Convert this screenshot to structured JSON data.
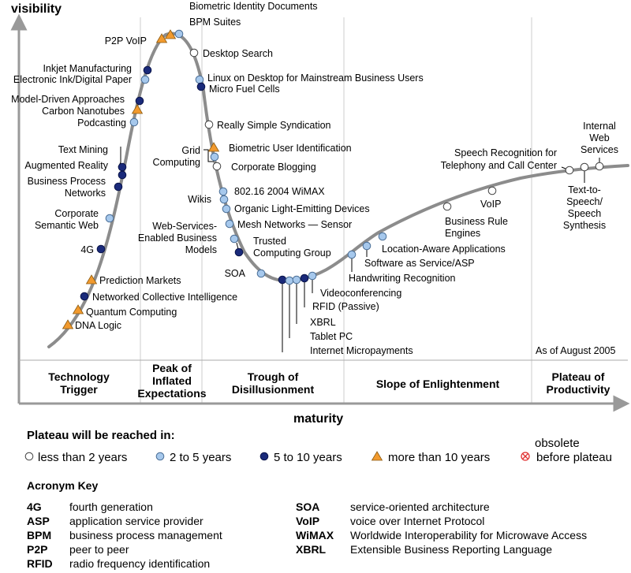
{
  "axes": {
    "y_label": "visibility",
    "x_label": "maturity"
  },
  "as_of": "As of August 2005",
  "phases": [
    [
      "Technology",
      "Trigger"
    ],
    [
      "Peak of",
      "Inflated",
      "Expectations"
    ],
    [
      "Trough of",
      "Disillusionment"
    ],
    [
      "Slope of Enlightenment"
    ],
    [
      "Plateau of",
      "Productivity"
    ]
  ],
  "technologies": [
    {
      "name": "DNA Logic",
      "cat": "more_than_10"
    },
    {
      "name": "Quantum Computing",
      "cat": "more_than_10"
    },
    {
      "name": "Networked Collective Intelligence",
      "cat": "5_to_10"
    },
    {
      "name": "Prediction Markets",
      "cat": "more_than_10"
    },
    {
      "name": "4G",
      "cat": "5_to_10"
    },
    {
      "name": "Corporate Semantic Web",
      "cat": "2_to_5"
    },
    {
      "name": "Business Process Networks",
      "cat": "5_to_10"
    },
    {
      "name": "Augmented Reality",
      "cat": "5_to_10"
    },
    {
      "name": "Text Mining",
      "cat": "5_to_10"
    },
    {
      "name": "Podcasting",
      "cat": "2_to_5"
    },
    {
      "name": "Carbon Nanotubes",
      "cat": "more_than_10"
    },
    {
      "name": "Model-Driven Approaches",
      "cat": "5_to_10"
    },
    {
      "name": "Electronic Ink/Digital Paper",
      "cat": "2_to_5"
    },
    {
      "name": "Inkjet Manufacturing",
      "cat": "5_to_10"
    },
    {
      "name": "P2P VoIP",
      "cat": "more_than_10"
    },
    {
      "name": "Biometric Identity Documents",
      "cat": "more_than_10"
    },
    {
      "name": "BPM Suites",
      "cat": "2_to_5"
    },
    {
      "name": "Desktop Search",
      "cat": "less_than_2"
    },
    {
      "name": "Linux on Desktop for Mainstream Business Users",
      "cat": "2_to_5"
    },
    {
      "name": "Micro Fuel Cells",
      "cat": "5_to_10"
    },
    {
      "name": "Really Simple Syndication",
      "cat": "less_than_2"
    },
    {
      "name": "Biometric User Identification",
      "cat": "more_than_10"
    },
    {
      "name": "Grid Computing",
      "cat": "2_to_5"
    },
    {
      "name": "Corporate Blogging",
      "cat": "less_than_2"
    },
    {
      "name": "802.16 2004 WiMAX",
      "cat": "2_to_5"
    },
    {
      "name": "Wikis",
      "cat": "2_to_5"
    },
    {
      "name": "Organic Light-Emitting Devices",
      "cat": "2_to_5"
    },
    {
      "name": "Mesh Networks — Sensor",
      "cat": "2_to_5"
    },
    {
      "name": "Web-Services-Enabled Business Models",
      "cat": "2_to_5"
    },
    {
      "name": "Trusted Computing Group",
      "cat": "5_to_10"
    },
    {
      "name": "SOA",
      "cat": "2_to_5"
    },
    {
      "name": "Internet Micropayments",
      "cat": "5_to_10"
    },
    {
      "name": "Tablet PC",
      "cat": "2_to_5"
    },
    {
      "name": "XBRL",
      "cat": "2_to_5"
    },
    {
      "name": "RFID (Passive)",
      "cat": "5_to_10"
    },
    {
      "name": "Videoconferencing",
      "cat": "2_to_5"
    },
    {
      "name": "Handwriting Recognition",
      "cat": "2_to_5"
    },
    {
      "name": "Software as Service/ASP",
      "cat": "2_to_5"
    },
    {
      "name": "Location-Aware Applications",
      "cat": "2_to_5"
    },
    {
      "name": "Business Rule Engines",
      "cat": "less_than_2"
    },
    {
      "name": "VoIP",
      "cat": "less_than_2"
    },
    {
      "name": "Speech Recognition for Telephony and Call Center",
      "cat": "less_than_2"
    },
    {
      "name": "Text-to-Speech/Speech Synthesis",
      "cat": "less_than_2"
    },
    {
      "name": "Internal Web Services",
      "cat": "less_than_2"
    }
  ],
  "legend": {
    "title": "Plateau will be reached in:",
    "items": [
      {
        "key": "less_than_2",
        "label": "less than 2 years"
      },
      {
        "key": "2_to_5",
        "label": "2 to 5 years"
      },
      {
        "key": "5_to_10",
        "label": "5 to 10 years"
      },
      {
        "key": "more_than_10",
        "label": "more than 10 years"
      },
      {
        "key": "obsolete",
        "label_top": "obsolete",
        "label": "before plateau"
      }
    ]
  },
  "acronyms": {
    "title": "Acronym Key",
    "left": [
      {
        "abbr": "4G",
        "def": "fourth generation"
      },
      {
        "abbr": "ASP",
        "def": "application service provider"
      },
      {
        "abbr": "BPM",
        "def": "business process management"
      },
      {
        "abbr": "P2P",
        "def": "peer to peer"
      },
      {
        "abbr": "RFID",
        "def": "radio frequency identification"
      }
    ],
    "right": [
      {
        "abbr": "SOA",
        "def": "service-oriented architecture"
      },
      {
        "abbr": "VoIP",
        "def": "voice over Internet Protocol"
      },
      {
        "abbr": "WiMAX",
        "def": "Worldwide Interoperability for Microwave Access"
      },
      {
        "abbr": "XBRL",
        "def": "Extensible Business Reporting Language"
      }
    ]
  },
  "colors": {
    "less_than_2": "#ffffff",
    "2_to_5": "#a6c8ec",
    "5_to_10": "#1a2a7a",
    "more_than_10": "#f29a2e",
    "curve": "#8c8c8c",
    "axis": "#999999",
    "divider": "#cccccc"
  }
}
